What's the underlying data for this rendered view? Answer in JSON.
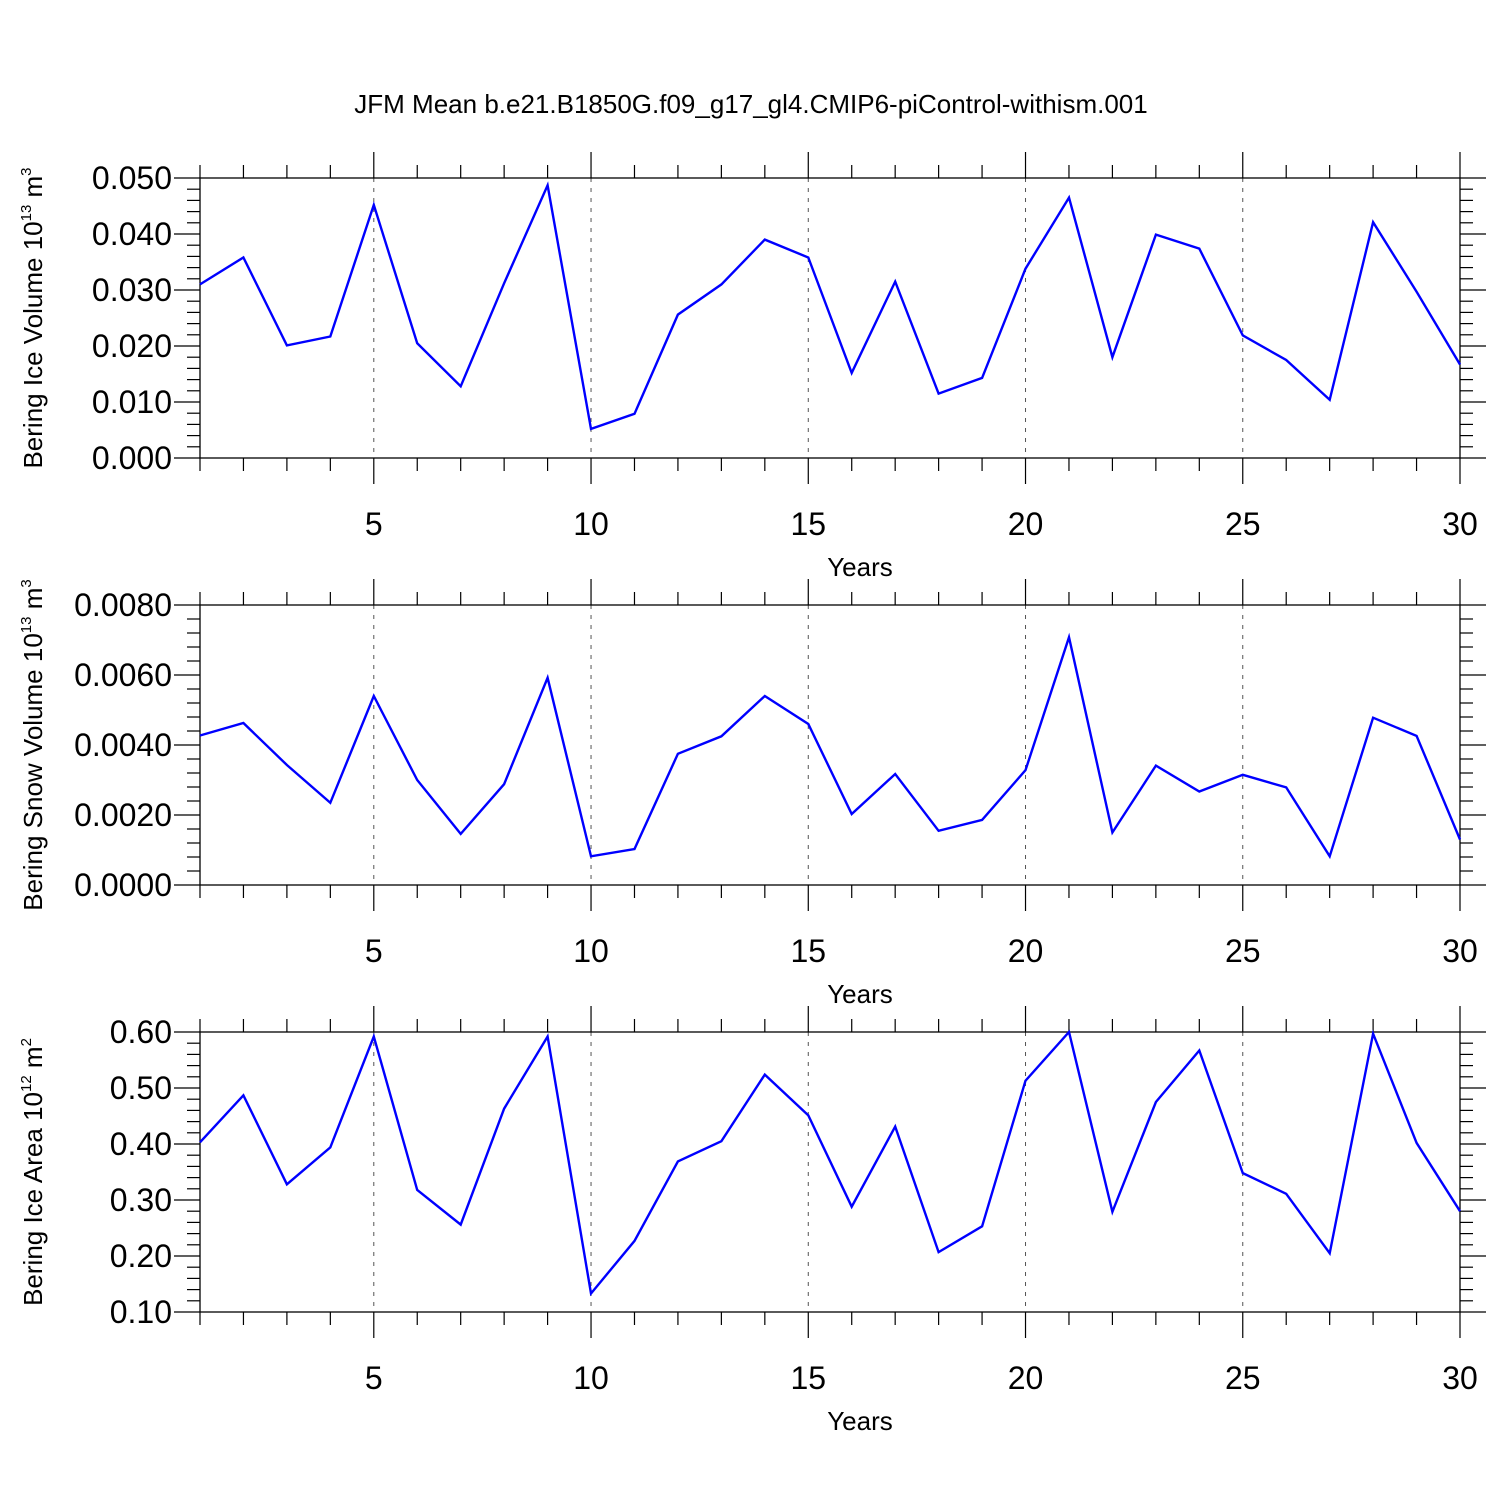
{
  "page_title": "JFM Mean b.e21.B1850G.f09_g17_gl4.CMIP6-piControl-withism.001",
  "line_color": "#0000ff",
  "chart_data": [
    {
      "type": "line",
      "ylabel": {
        "base": "Bering Ice Volume 10",
        "exp": "13",
        "unit": " m",
        "unit_exp": "3"
      },
      "xlabel": "Years",
      "xlim": [
        1,
        30
      ],
      "ylim": [
        0.0,
        0.05
      ],
      "yticks": [
        0.0,
        0.01,
        0.02,
        0.03,
        0.04,
        0.05
      ],
      "ytick_labels": [
        "0.000",
        "0.010",
        "0.020",
        "0.030",
        "0.040",
        "0.050"
      ],
      "xticks": [
        5,
        10,
        15,
        20,
        25,
        30
      ],
      "xtick_labels": [
        "5",
        "10",
        "15",
        "20",
        "25",
        "30"
      ],
      "grid": "vertical dashed at major x ticks",
      "x": [
        1,
        2,
        3,
        4,
        5,
        6,
        7,
        8,
        9,
        10,
        11,
        12,
        13,
        14,
        15,
        16,
        17,
        18,
        19,
        20,
        21,
        22,
        23,
        24,
        25,
        26,
        27,
        28,
        29,
        30
      ],
      "values": [
        0.031,
        0.0358,
        0.0201,
        0.0217,
        0.0452,
        0.0205,
        0.0128,
        0.0312,
        0.0487,
        0.0052,
        0.0079,
        0.0256,
        0.031,
        0.039,
        0.0358,
        0.0152,
        0.0315,
        0.0115,
        0.0143,
        0.0338,
        0.0465,
        0.018,
        0.0399,
        0.0374,
        0.0219,
        0.0175,
        0.0104,
        0.0421,
        0.0297,
        0.0167
      ]
    },
    {
      "type": "line",
      "ylabel": {
        "base": "Bering Snow Volume 10",
        "exp": "13",
        "unit": " m",
        "unit_exp": "3"
      },
      "xlabel": "Years",
      "xlim": [
        1,
        30
      ],
      "ylim": [
        0.0,
        0.008
      ],
      "yticks": [
        0.0,
        0.002,
        0.004,
        0.006,
        0.008
      ],
      "ytick_labels": [
        "0.0000",
        "0.0020",
        "0.0040",
        "0.0060",
        "0.0080"
      ],
      "xticks": [
        5,
        10,
        15,
        20,
        25,
        30
      ],
      "xtick_labels": [
        "5",
        "10",
        "15",
        "20",
        "25",
        "30"
      ],
      "grid": "vertical dashed at major x ticks",
      "x": [
        1,
        2,
        3,
        4,
        5,
        6,
        7,
        8,
        9,
        10,
        11,
        12,
        13,
        14,
        15,
        16,
        17,
        18,
        19,
        20,
        21,
        22,
        23,
        24,
        25,
        26,
        27,
        28,
        29,
        30
      ],
      "values": [
        0.00427,
        0.00463,
        0.00343,
        0.00235,
        0.0054,
        0.003,
        0.00146,
        0.00288,
        0.00592,
        0.00082,
        0.00103,
        0.00375,
        0.00425,
        0.0054,
        0.0046,
        0.00203,
        0.00317,
        0.00155,
        0.00186,
        0.00328,
        0.00708,
        0.0015,
        0.00341,
        0.00267,
        0.00315,
        0.00279,
        0.00082,
        0.00478,
        0.00426,
        0.0013
      ]
    },
    {
      "type": "line",
      "ylabel": {
        "base": "Bering Ice Area 10",
        "exp": "12",
        "unit": " m",
        "unit_exp": "2"
      },
      "xlabel": "Years",
      "xlim": [
        1,
        30
      ],
      "ylim": [
        0.1,
        0.6
      ],
      "yticks": [
        0.1,
        0.2,
        0.3,
        0.4,
        0.5,
        0.6
      ],
      "ytick_labels": [
        "0.10",
        "0.20",
        "0.30",
        "0.40",
        "0.50",
        "0.60"
      ],
      "xticks": [
        5,
        10,
        15,
        20,
        25,
        30
      ],
      "xtick_labels": [
        "5",
        "10",
        "15",
        "20",
        "25",
        "30"
      ],
      "grid": "vertical dashed at major x ticks",
      "x": [
        1,
        2,
        3,
        4,
        5,
        6,
        7,
        8,
        9,
        10,
        11,
        12,
        13,
        14,
        15,
        16,
        17,
        18,
        19,
        20,
        21,
        22,
        23,
        24,
        25,
        26,
        27,
        28,
        29,
        30
      ],
      "values": [
        0.403,
        0.487,
        0.328,
        0.394,
        0.592,
        0.318,
        0.256,
        0.463,
        0.592,
        0.133,
        0.227,
        0.369,
        0.405,
        0.524,
        0.451,
        0.288,
        0.431,
        0.207,
        0.253,
        0.513,
        0.6,
        0.279,
        0.475,
        0.567,
        0.348,
        0.311,
        0.205,
        0.597,
        0.402,
        0.28
      ]
    }
  ]
}
